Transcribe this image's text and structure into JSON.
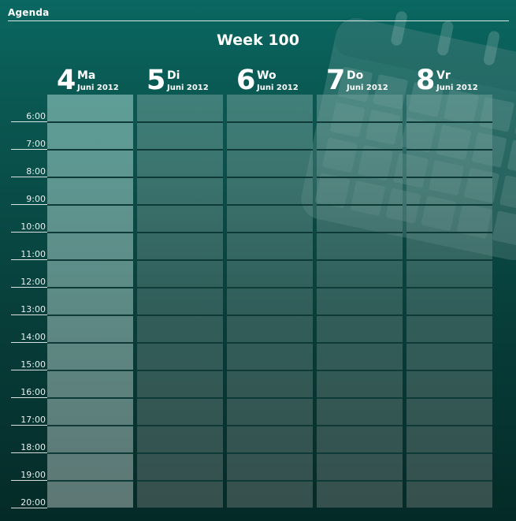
{
  "app": {
    "title": "Agenda"
  },
  "week": {
    "title": "Week 100"
  },
  "days": [
    {
      "num": "4",
      "name": "Ma",
      "date": "Juni 2012",
      "today": true
    },
    {
      "num": "5",
      "name": "Di",
      "date": "Juni 2012",
      "today": false
    },
    {
      "num": "6",
      "name": "Wo",
      "date": "Juni 2012",
      "today": false
    },
    {
      "num": "7",
      "name": "Do",
      "date": "Juni 2012",
      "today": false
    },
    {
      "num": "8",
      "name": "Vr",
      "date": "Juni 2012",
      "today": false
    }
  ],
  "times": [
    "6:00",
    "7:00",
    "8:00",
    "9:00",
    "10:00",
    "11:00",
    "12:00",
    "13:00",
    "14:00",
    "15:00",
    "16:00",
    "17:00",
    "18:00",
    "19:00",
    "20:00"
  ],
  "background_icon": "calendar-icon",
  "colors": {
    "accent": "#0a6761",
    "today_column": "#5f9e98",
    "slot_divider": "#0e3b37"
  }
}
